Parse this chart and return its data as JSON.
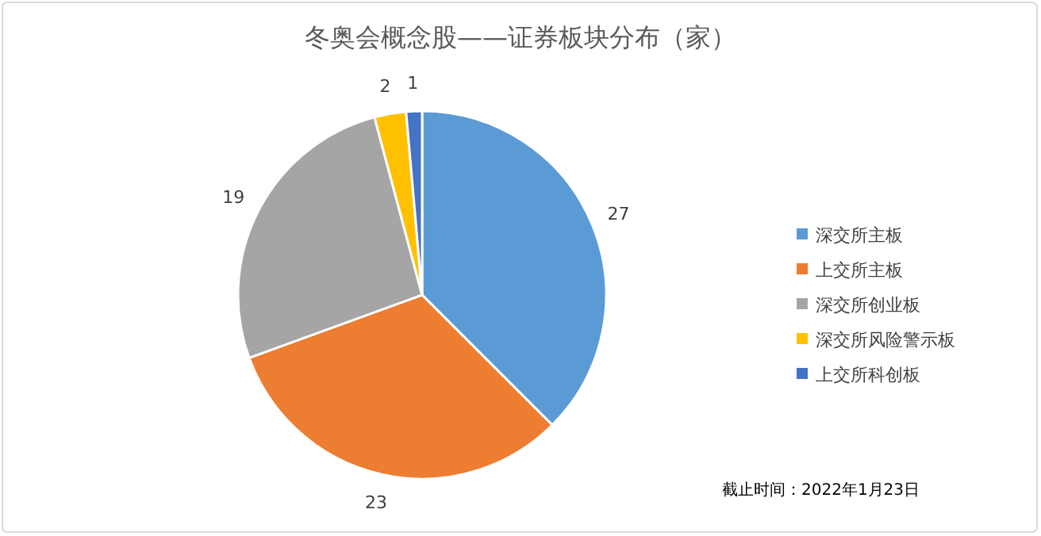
{
  "chart_data": {
    "type": "pie",
    "title": "冬奥会概念股——证券板块分布（家）",
    "categories": [
      "深交所主板",
      "上交所主板",
      "深交所创业板",
      "深交所风险警示板",
      "上交所科创板"
    ],
    "values": [
      27,
      23,
      19,
      2,
      1
    ],
    "colors": [
      "#5b9bd5",
      "#ed7d31",
      "#a5a5a5",
      "#ffc000",
      "#4472c4"
    ],
    "data_labels": true,
    "legend": "right",
    "annotations": [
      "截止时间：2022年1月23日"
    ]
  }
}
